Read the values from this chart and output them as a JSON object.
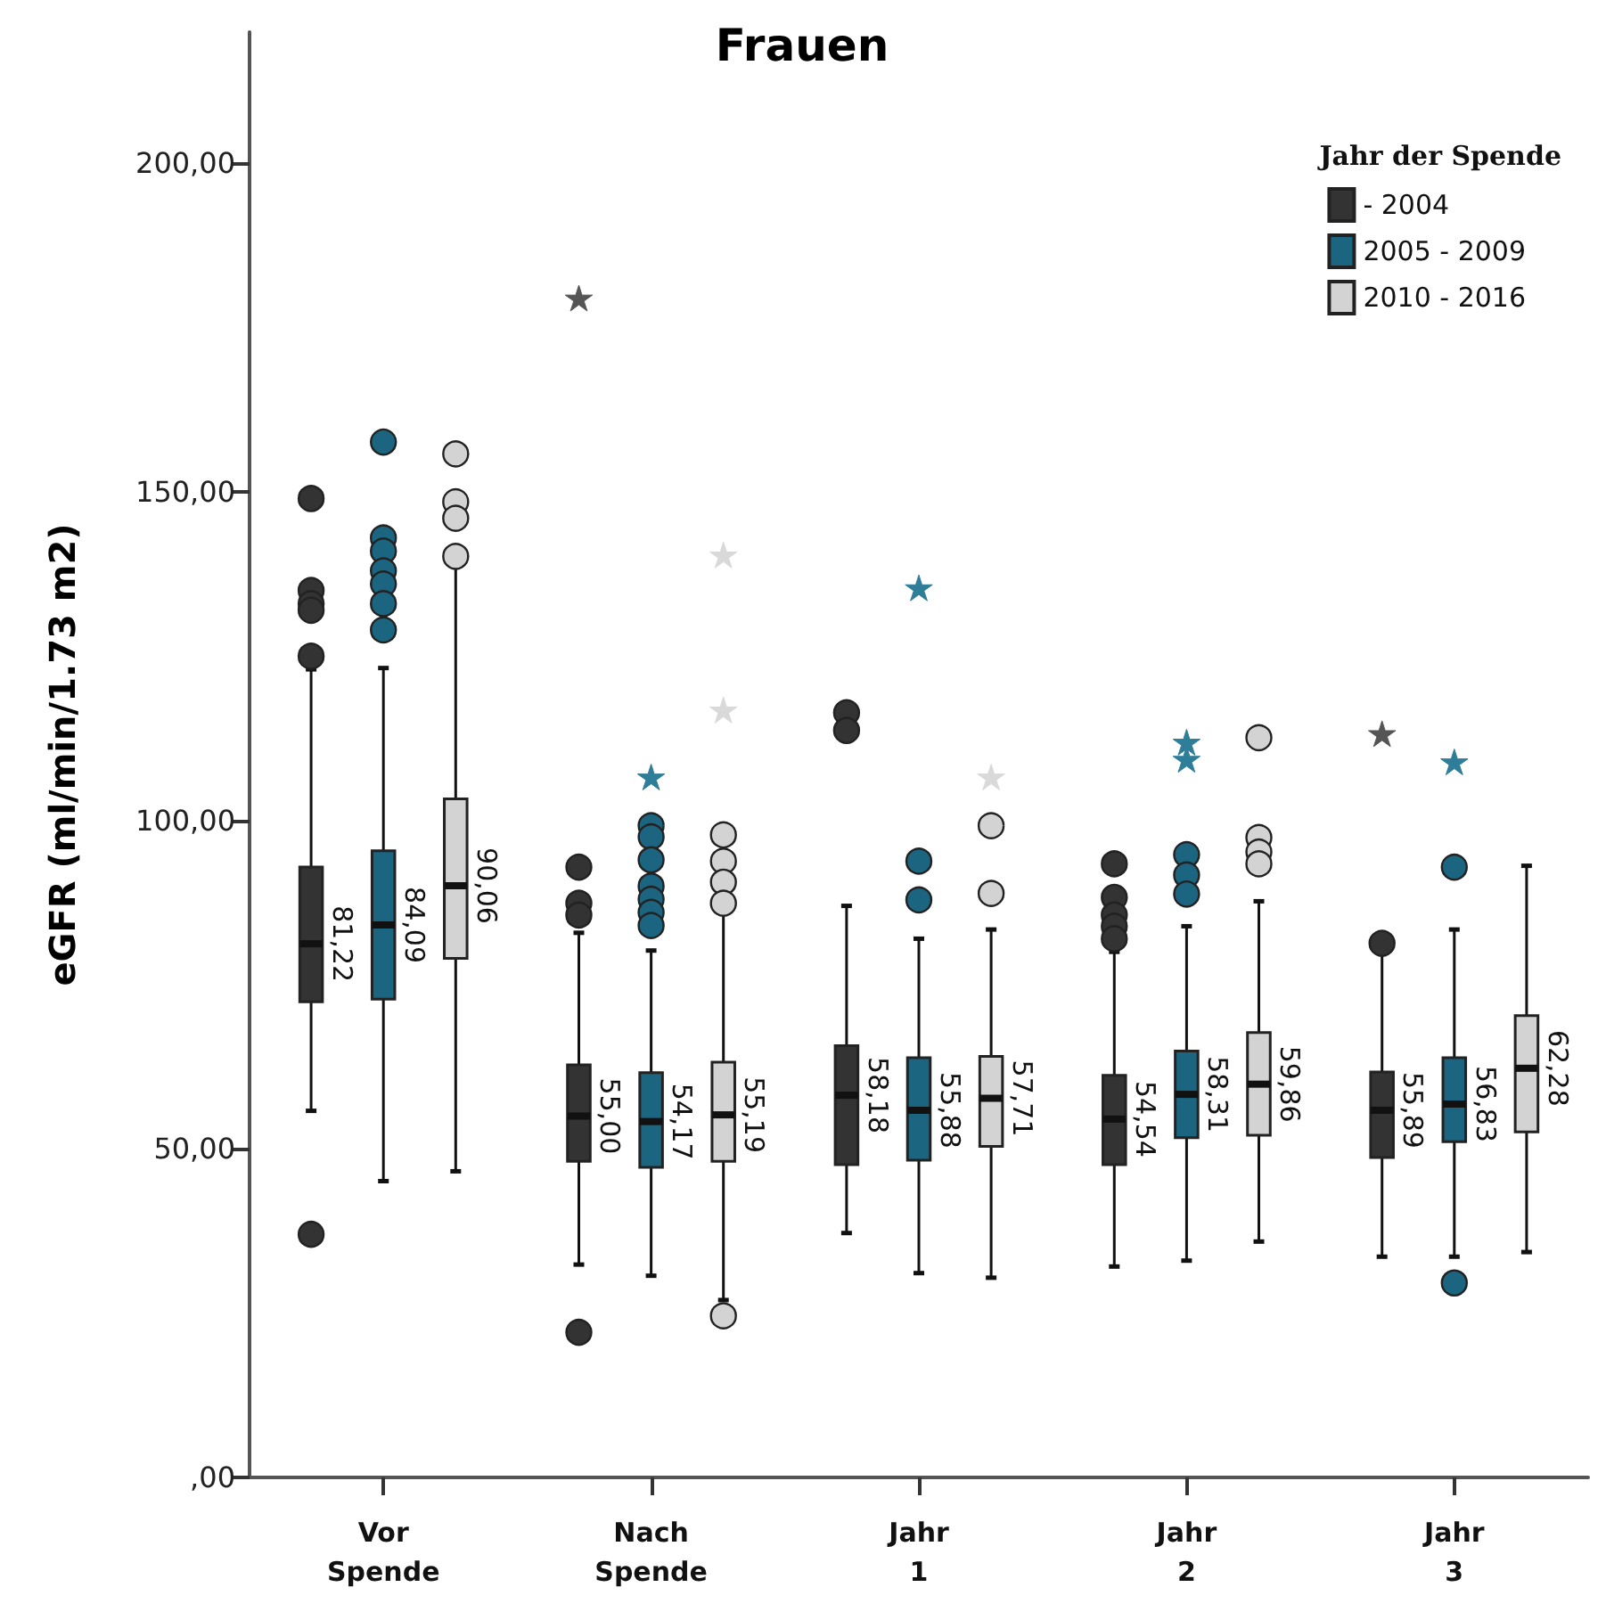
{
  "chart_data": {
    "type": "box",
    "title": "Frauen",
    "ylabel": "eGFR (ml/min/1.73 m2)",
    "legend_title": "Jahr der Spende",
    "legend": "top right",
    "categories": [
      "Vor Spende",
      "Nach Spende",
      "Jahr 1",
      "Jahr 2",
      "Jahr 3"
    ],
    "ylim": [
      0,
      220
    ],
    "yticks": [
      {
        "value": 0,
        "label": ",00"
      },
      {
        "value": 50,
        "label": "50,00"
      },
      {
        "value": 100,
        "label": "100,00"
      },
      {
        "value": 150,
        "label": "150,00"
      },
      {
        "value": 200,
        "label": "200,00"
      }
    ],
    "series": [
      {
        "name": "- 2004",
        "color": "#333333",
        "marker": "circle",
        "value_labels": [
          "81,22",
          "55,00",
          "58,18",
          "54,54",
          "55,89"
        ],
        "boxes": [
          {
            "low": 55.8,
            "q1": 72.4,
            "median": 81.22,
            "q3": 92.9,
            "high": 123,
            "outliers": [
              149,
              135,
              133,
              132,
              125,
              37
            ]
          },
          {
            "low": 32.4,
            "q1": 48.1,
            "median": 55.0,
            "q3": 62.8,
            "high": 82.9,
            "outliers": [
              92.9,
              87.4,
              85.6,
              22.1
            ]
          },
          {
            "low": 37.2,
            "q1": 47.6,
            "median": 58.18,
            "q3": 65.7,
            "high": 87.0,
            "outliers": [
              116.4,
              113.7
            ]
          },
          {
            "low": 32.1,
            "q1": 47.6,
            "median": 54.54,
            "q3": 61.2,
            "high": 80,
            "outliers": [
              93.4,
              88.3,
              85.6,
              83.9,
              82.0
            ]
          },
          {
            "low": 33.6,
            "q1": 48.7,
            "median": 55.89,
            "q3": 61.7,
            "high": 80,
            "outliers": [
              81.3
            ]
          }
        ]
      },
      {
        "name": "2005 - 2009",
        "color": "#1b6580",
        "marker": "circle",
        "value_labels": [
          "84,09",
          "54,17",
          "55,88",
          "58,31",
          "56,83"
        ],
        "boxes": [
          {
            "low": 45.1,
            "q1": 72.8,
            "median": 84.09,
            "q3": 95.4,
            "high": 123.2,
            "outliers": [
              157.6,
              143,
              141,
              138,
              136,
              133,
              129
            ]
          },
          {
            "low": 30.7,
            "q1": 47.2,
            "median": 54.17,
            "q3": 61.6,
            "high": 80.2,
            "outliers": [
              99.2,
              97.5,
              94,
              90,
              88,
              86,
              84
            ]
          },
          {
            "low": 31.1,
            "q1": 48.3,
            "median": 55.88,
            "q3": 63.9,
            "high": 82.0,
            "outliers": [
              93.8,
              87.9
            ]
          },
          {
            "low": 33.0,
            "q1": 51.7,
            "median": 58.31,
            "q3": 64.9,
            "high": 83.9,
            "outliers": [
              94.8,
              91.7,
              88.8
            ]
          },
          {
            "low": 33.6,
            "q1": 51.1,
            "median": 56.83,
            "q3": 63.9,
            "high": 83.4,
            "outliers": [
              92.9,
              29.6
            ]
          }
        ]
      },
      {
        "name": "2010 - 2016",
        "color": "#d3d3d3",
        "marker": "circle",
        "value_labels": [
          "90,06",
          "55,19",
          "57,71",
          "59,86",
          "62,28"
        ],
        "boxes": [
          {
            "low": 46.6,
            "q1": 79.0,
            "median": 90.06,
            "q3": 103.3,
            "high": 139,
            "outliers": [
              155.8,
              148.5,
              146,
              140.2
            ]
          },
          {
            "low": 27,
            "q1": 48.1,
            "median": 55.19,
            "q3": 63.2,
            "high": 86,
            "outliers": [
              97.8,
              93.8,
              90.6,
              87.4,
              24.6
            ]
          },
          {
            "low": 30.4,
            "q1": 50.4,
            "median": 57.71,
            "q3": 64.1,
            "high": 83.4,
            "outliers": [
              99.2,
              88.9
            ]
          },
          {
            "low": 35.9,
            "q1": 52.1,
            "median": 59.86,
            "q3": 67.7,
            "high": 87.7,
            "outliers": [
              112.6,
              97.4,
              95.2,
              93.4
            ]
          },
          {
            "low": 34.3,
            "q1": 52.6,
            "median": 62.28,
            "q3": 70.3,
            "high": 93.1
          }
        ]
      },
      {
        "type": "scatter",
        "color": "#555555",
        "marker": "star",
        "x": [
          "Nach Spende",
          "Jahr 3"
        ],
        "values": [
          179.3,
          113.0
        ]
      },
      {
        "type": "scatter",
        "color": "#2e7d99",
        "marker": "star",
        "x": [
          "Nach Spende",
          "Jahr 1",
          "Jahr 2",
          "Jahr 2",
          "Jahr 3"
        ],
        "values": [
          106.4,
          135.2,
          111.7,
          109.1,
          108.7
        ]
      },
      {
        "type": "scatter",
        "color": "#d9d9d9",
        "marker": "star",
        "x": [
          "Nach Spende",
          "Nach Spende",
          "Jahr 1"
        ],
        "values": [
          140.2,
          116.6,
          106.4
        ]
      }
    ]
  }
}
